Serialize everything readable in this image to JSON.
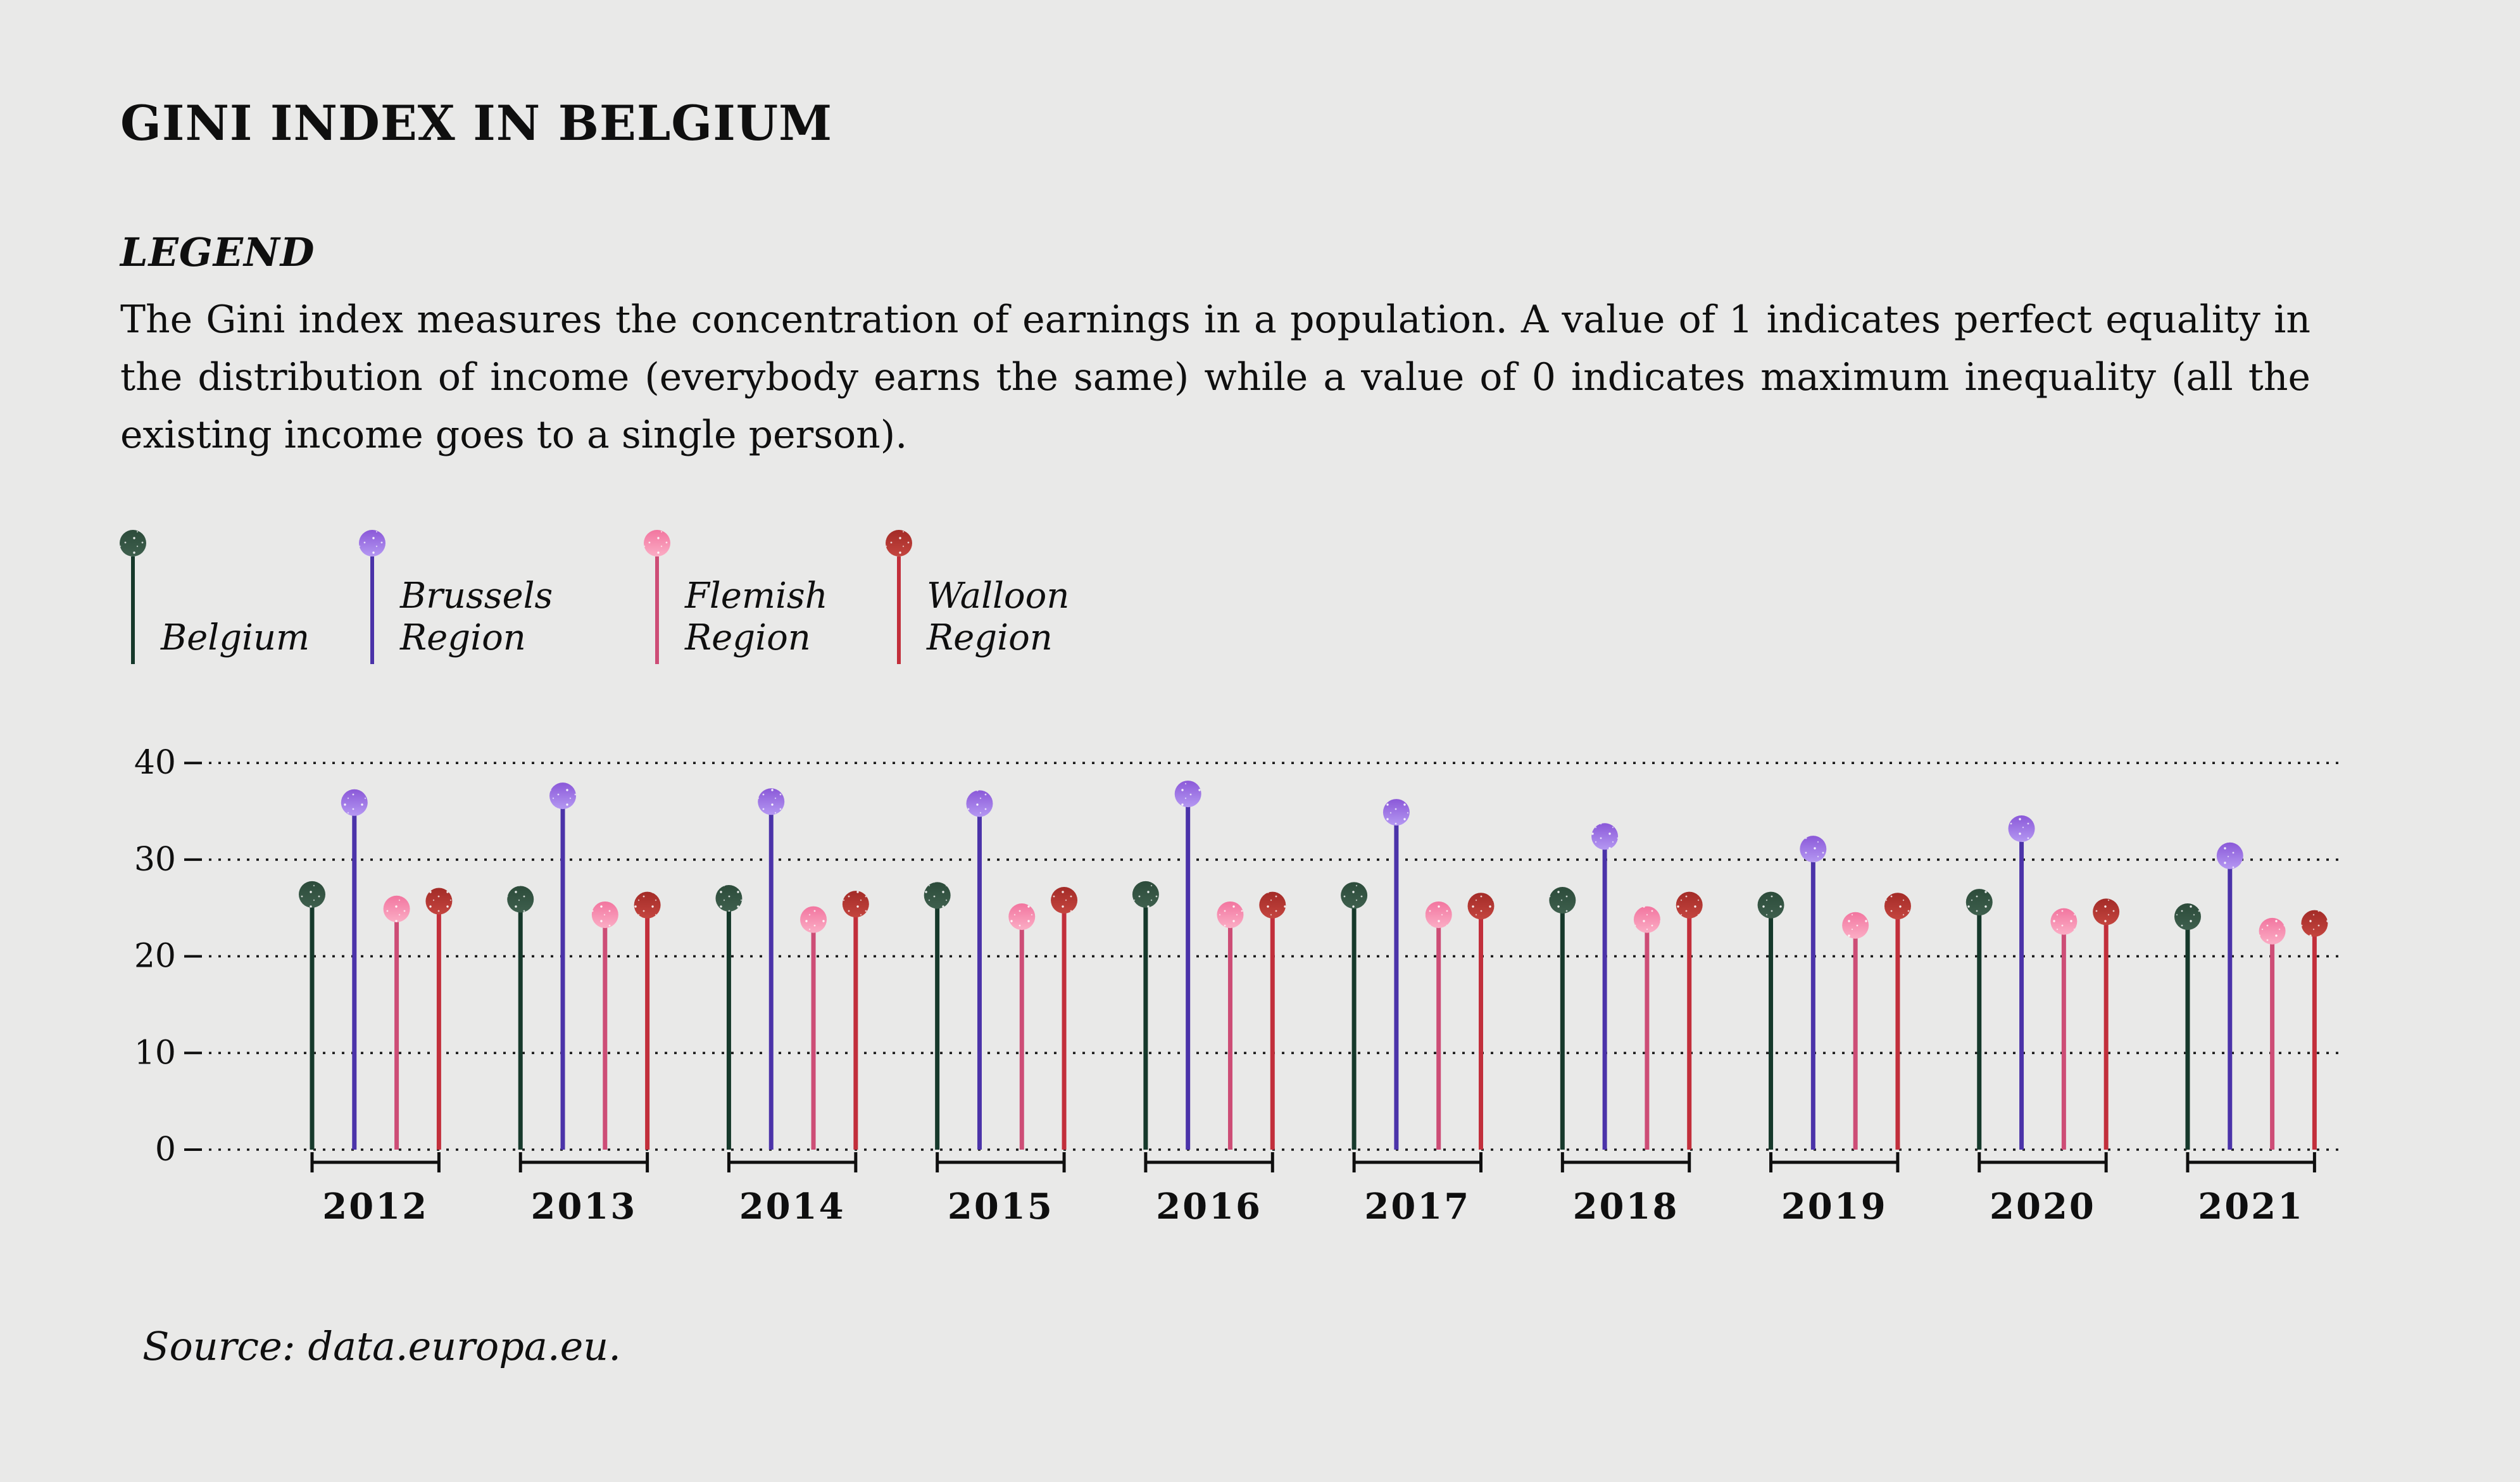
{
  "title": "GINI INDEX IN BELGIUM",
  "legend": {
    "heading": "LEGEND",
    "description": "The Gini index measures the concentration of earnings in a population. A value of 1 indicates perfect equality in the distribution of income (everybody earns the same) while a value of 0 indicates maximum inequality (all the existing income goes to a single person).",
    "items": [
      {
        "label": "Belgium",
        "circle_color_top": "#2c4b3a",
        "circle_color_bottom": "#3e5f4d",
        "stem_color": "#16392b"
      },
      {
        "label": "Brussels Region",
        "circle_color_top": "#8a58d8",
        "circle_color_bottom": "#b598f2",
        "stem_color": "#4b33a9"
      },
      {
        "label": "Flemish Region",
        "circle_color_top": "#f2759f",
        "circle_color_bottom": "#fbadc5",
        "stem_color": "#cd4d76"
      },
      {
        "label": "Walloon Region",
        "circle_color_top": "#a32b27",
        "circle_color_bottom": "#c4453f",
        "stem_color": "#c22f3b"
      }
    ]
  },
  "source": "Source: data.europa.eu.",
  "chart_data": {
    "type": "lollipop",
    "title": "Gini index in Belgium by region, 2012-2021",
    "categories": [
      "2012",
      "2013",
      "2014",
      "2015",
      "2016",
      "2017",
      "2018",
      "2019",
      "2020",
      "2021"
    ],
    "series": [
      {
        "name": "Belgium",
        "values": [
          26.4,
          25.9,
          26.0,
          26.3,
          26.4,
          26.3,
          25.8,
          25.3,
          25.6,
          24.1
        ]
      },
      {
        "name": "Brussels Region",
        "values": [
          35.9,
          36.6,
          36.0,
          35.8,
          36.8,
          34.9,
          32.4,
          31.1,
          33.2,
          30.4
        ]
      },
      {
        "name": "Flemish Region",
        "values": [
          24.9,
          24.3,
          23.8,
          24.1,
          24.3,
          24.3,
          23.8,
          23.2,
          23.6,
          22.6
        ]
      },
      {
        "name": "Walloon Region",
        "values": [
          25.7,
          25.3,
          25.4,
          25.8,
          25.3,
          25.2,
          25.3,
          25.2,
          24.6,
          23.4
        ]
      }
    ],
    "xlabel": "",
    "ylabel": "",
    "ylim": [
      0,
      40
    ],
    "yticks": [
      "0",
      "10",
      "20",
      "30",
      "40"
    ],
    "grid": "horizontal-dotted",
    "legend_position": "top-left"
  },
  "colors": {
    "background": "#e9e9e8",
    "text": "#0f0f0f",
    "gridline": "#1a1a1a"
  }
}
